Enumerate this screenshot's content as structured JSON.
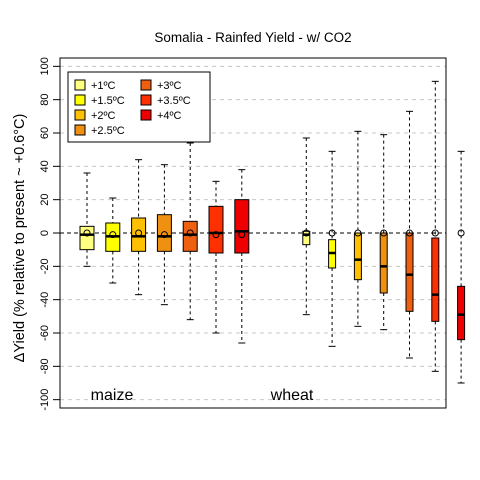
{
  "chart_data": {
    "type": "box",
    "title": "Somalia - Rainfed Yield - w/ CO2",
    "ylabel": "ΔYield (% relative to present ~ +0.6°C)",
    "xlabel": "",
    "ylim": [
      -105,
      105
    ],
    "yticks": [
      -100,
      -80,
      -60,
      -40,
      -20,
      0,
      20,
      40,
      60,
      80,
      100
    ],
    "grid": "horizontal dashed at y ticks",
    "legend_position": "top-left",
    "legend": [
      {
        "label": "+1ºC",
        "color": "#FFFF80"
      },
      {
        "label": "+1.5ºC",
        "color": "#FFFF00"
      },
      {
        "label": "+2ºC",
        "color": "#FFC000"
      },
      {
        "label": "+2.5ºC",
        "color": "#F09010"
      },
      {
        "label": "+3ºC",
        "color": "#EE6010"
      },
      {
        "label": "+3.5ºC",
        "color": "#FF3000"
      },
      {
        "label": "+4ºC",
        "color": "#EE0000"
      }
    ],
    "groups": [
      {
        "name": "maize",
        "label": "maize"
      },
      {
        "name": "wheat",
        "label": "wheat"
      }
    ],
    "boxes": [
      {
        "group": "maize",
        "level": "+1ºC",
        "color": "#FFFF80",
        "whisker_low": -20,
        "q1": -10,
        "median": -1,
        "q3": 4,
        "whisker_high": 36,
        "mean": 0
      },
      {
        "group": "maize",
        "level": "+1.5ºC",
        "color": "#FFFF00",
        "whisker_low": -30,
        "q1": -11,
        "median": -2,
        "q3": 6,
        "whisker_high": 21,
        "mean": -1
      },
      {
        "group": "maize",
        "level": "+2ºC",
        "color": "#FFC000",
        "whisker_low": -37,
        "q1": -11,
        "median": -2,
        "q3": 9,
        "whisker_high": 44,
        "mean": 0
      },
      {
        "group": "maize",
        "level": "+2.5ºC",
        "color": "#F09010",
        "whisker_low": -43,
        "q1": -11,
        "median": -2,
        "q3": 11,
        "whisker_high": 41,
        "mean": -1
      },
      {
        "group": "maize",
        "level": "+3ºC",
        "color": "#EE6010",
        "whisker_low": -52,
        "q1": -11,
        "median": -1,
        "q3": 7,
        "whisker_high": 54,
        "mean": 0
      },
      {
        "group": "maize",
        "level": "+3.5ºC",
        "color": "#FF3000",
        "whisker_low": -60,
        "q1": -12,
        "median": 0,
        "q3": 16,
        "whisker_high": 31,
        "mean": -1
      },
      {
        "group": "maize",
        "level": "+4ºC",
        "color": "#EE0000",
        "whisker_low": -66,
        "q1": -12,
        "median": 1,
        "q3": 20,
        "whisker_high": 38,
        "mean": -1
      },
      {
        "group": "wheat",
        "level": "+1ºC",
        "color": "#FFFF80",
        "whisker_low": -49,
        "q1": -7,
        "median": -1,
        "q3": 1,
        "whisker_high": 57,
        "mean": 0
      },
      {
        "group": "wheat",
        "level": "+1.5ºC",
        "color": "#FFFF00",
        "whisker_low": -68,
        "q1": -21,
        "median": -12,
        "q3": -4,
        "whisker_high": 49,
        "mean": 0
      },
      {
        "group": "wheat",
        "level": "+2ºC",
        "color": "#FFC000",
        "whisker_low": -56,
        "q1": -28,
        "median": -16,
        "q3": 0,
        "whisker_high": 61,
        "mean": 0
      },
      {
        "group": "wheat",
        "level": "+2.5ºC",
        "color": "#F09010",
        "whisker_low": -58,
        "q1": -36,
        "median": -20,
        "q3": 0,
        "whisker_high": 59,
        "mean": 0
      },
      {
        "group": "wheat",
        "level": "+3ºC",
        "color": "#EE6010",
        "whisker_low": -75,
        "q1": -47,
        "median": -25,
        "q3": 0,
        "whisker_high": 73,
        "mean": 0
      },
      {
        "group": "wheat",
        "level": "+3.5ºC",
        "color": "#FF3000",
        "whisker_low": -83,
        "q1": -53,
        "median": -37,
        "q3": -3,
        "whisker_high": 91,
        "mean": 0
      },
      {
        "group": "wheat",
        "level": "+4ºC",
        "color": "#EE0000",
        "whisker_low": -90,
        "q1": -64,
        "median": -49,
        "q3": -32,
        "whisker_high": 49,
        "mean": 0
      }
    ]
  }
}
